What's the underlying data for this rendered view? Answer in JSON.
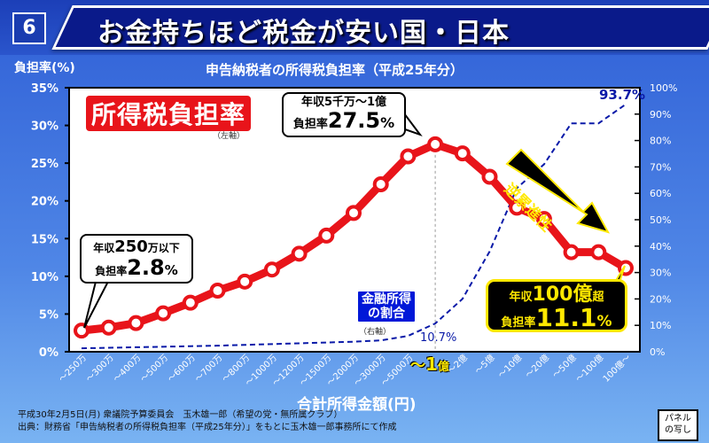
{
  "header": {
    "number": "6",
    "title": "お金持ちほど税金が安い国・日本"
  },
  "chart_data": {
    "type": "line",
    "title": "申告納税者の所得税負担率（平成25年分）",
    "ylabel": "負担率(%)",
    "xlabel": "合計所得金額(円)",
    "ylim": [
      0,
      35
    ],
    "y2lim": [
      0,
      100
    ],
    "yticks": [
      "0%",
      "5%",
      "10%",
      "15%",
      "20%",
      "25%",
      "30%",
      "35%"
    ],
    "y2ticks": [
      "0%",
      "10%",
      "20%",
      "30%",
      "40%",
      "50%",
      "60%",
      "70%",
      "80%",
      "90%",
      "100%"
    ],
    "categories": [
      "～250万",
      "～300万",
      "～400万",
      "～500万",
      "～600万",
      "～700万",
      "～800万",
      "～1000万",
      "～1200万",
      "～1500万",
      "～2000万",
      "～3000万",
      "～5000万",
      "～1億",
      "～2億",
      "～5億",
      "～10億",
      "～20億",
      "～50億",
      "～100億",
      "100億～"
    ],
    "series": [
      {
        "name": "所得税負担率",
        "axis": "left",
        "unit": "%",
        "color": "#e8141a",
        "values": [
          2.8,
          3.2,
          3.8,
          5.1,
          6.5,
          8.1,
          9.3,
          10.9,
          13.0,
          15.4,
          18.4,
          22.2,
          25.9,
          27.5,
          26.3,
          23.2,
          19.1,
          17.6,
          13.2,
          13.2,
          11.1
        ]
      },
      {
        "name": "金融所得の割合",
        "axis": "right",
        "unit": "%",
        "color": "#0a1aa8",
        "values": [
          1.3,
          1.5,
          1.7,
          1.9,
          2.1,
          2.3,
          2.6,
          2.9,
          3.2,
          3.5,
          3.8,
          4.3,
          6.0,
          10.7,
          20.0,
          38.0,
          62.0,
          71.0,
          86.5,
          86.5,
          93.7
        ]
      }
    ],
    "annotations": {
      "peak_value": "93.7%",
      "mid_value": "10.7%"
    }
  },
  "legend": {
    "red": "所得税負担率",
    "red_axis": "（左軸）",
    "blue_l1": "金融所得",
    "blue_l2": "の割合",
    "blue_axis": "（右軸）"
  },
  "callouts": {
    "low": {
      "l1a": "年収",
      "l1b": "250",
      "l1c": "万以下",
      "l2a": "負担率",
      "l2b": "2.8",
      "l2c": "%"
    },
    "peak": {
      "l1": "年収5千万～1億",
      "l2a": "負担率",
      "l2b": "27.5",
      "l2c": "%"
    },
    "high": {
      "l1a": "年収",
      "l1b": "100億",
      "l1c": "超",
      "l2a": "負担率",
      "l2b": "11.1",
      "l2c": "%"
    },
    "arrow": "逆累進性"
  },
  "x_highlight": {
    "tilde": "～",
    "one": "1",
    "oku": "億"
  },
  "footer": {
    "line1": "平成30年2月5日(月) 衆議院予算委員会　玉木雄一郎（希望の党・無所属クラブ）",
    "line2": "出典：財務省「申告納税者の所得税負担率（平成25年分）」をもとに玉木雄一郎事務所にて作成"
  },
  "panel": {
    "l1": "パネル",
    "l2": "の写し"
  }
}
